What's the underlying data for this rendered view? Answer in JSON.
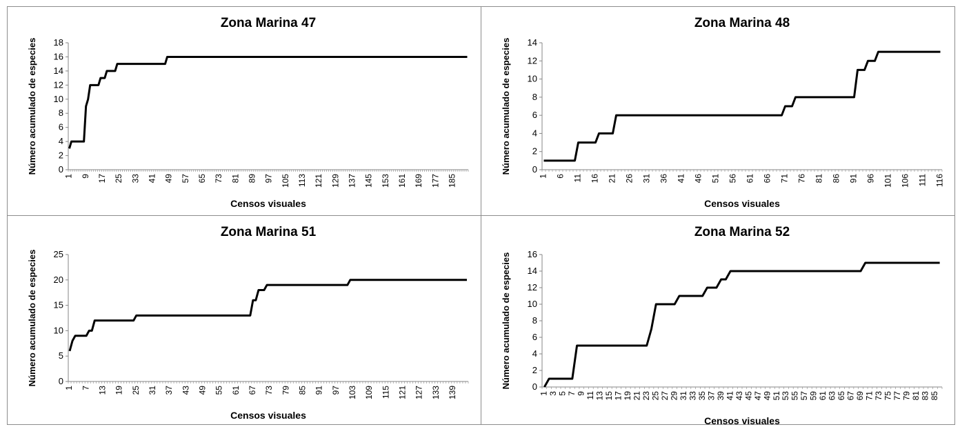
{
  "chart_data": [
    {
      "type": "line",
      "title": "Zona Marina 47",
      "xlabel": "Censos visuales",
      "ylabel": "Número acumulado de especies",
      "ylim": [
        0,
        18
      ],
      "ytick_step": 2,
      "n": 192,
      "xtick_start": 1,
      "xtick_step": 8,
      "series": [
        {
          "points": [
            [
              1,
              3
            ],
            [
              2,
              4
            ],
            [
              8,
              4
            ],
            [
              9,
              9
            ],
            [
              10,
              10
            ],
            [
              11,
              12
            ],
            [
              15,
              12
            ],
            [
              16,
              13
            ],
            [
              18,
              13
            ],
            [
              19,
              14
            ],
            [
              23,
              14
            ],
            [
              24,
              15
            ],
            [
              47,
              15
            ],
            [
              48,
              16
            ],
            [
              192,
              16
            ]
          ]
        }
      ]
    },
    {
      "type": "line",
      "title": "Zona Marina 48",
      "xlabel": "Censos visuales",
      "ylabel": "Número acumulado de especies",
      "ylim": [
        0,
        14
      ],
      "ytick_step": 2,
      "n": 116,
      "xtick_start": 1,
      "xtick_step": 5,
      "series": [
        {
          "points": [
            [
              1,
              1
            ],
            [
              10,
              1
            ],
            [
              11,
              3
            ],
            [
              16,
              3
            ],
            [
              17,
              4
            ],
            [
              21,
              4
            ],
            [
              22,
              6
            ],
            [
              70,
              6
            ],
            [
              71,
              7
            ],
            [
              73,
              7
            ],
            [
              74,
              8
            ],
            [
              91,
              8
            ],
            [
              92,
              11
            ],
            [
              94,
              11
            ],
            [
              95,
              12
            ],
            [
              97,
              12
            ],
            [
              98,
              13
            ],
            [
              116,
              13
            ]
          ]
        }
      ]
    },
    {
      "type": "line",
      "title": "Zona Marina 51",
      "xlabel": "Censos visuales",
      "ylabel": "Número acumulado de especies",
      "ylim": [
        0,
        25
      ],
      "ytick_step": 5,
      "n": 144,
      "xtick_start": 1,
      "xtick_step": 6,
      "series": [
        {
          "points": [
            [
              1,
              6
            ],
            [
              2,
              8
            ],
            [
              3,
              9
            ],
            [
              7,
              9
            ],
            [
              8,
              10
            ],
            [
              9,
              10
            ],
            [
              10,
              12
            ],
            [
              24,
              12
            ],
            [
              25,
              13
            ],
            [
              66,
              13
            ],
            [
              67,
              16
            ],
            [
              68,
              16
            ],
            [
              69,
              18
            ],
            [
              71,
              18
            ],
            [
              72,
              19
            ],
            [
              101,
              19
            ],
            [
              102,
              20
            ],
            [
              144,
              20
            ]
          ]
        }
      ]
    },
    {
      "type": "line",
      "title": "Zona Marina 52",
      "xlabel": "Censos visuales",
      "ylabel": "Número acumulado de especies",
      "ylim": [
        0,
        16
      ],
      "ytick_step": 2,
      "n": 86,
      "xtick_start": 1,
      "xtick_step": 2,
      "series": [
        {
          "points": [
            [
              1,
              0
            ],
            [
              2,
              1
            ],
            [
              7,
              1
            ],
            [
              8,
              5
            ],
            [
              23,
              5
            ],
            [
              24,
              7
            ],
            [
              25,
              10
            ],
            [
              29,
              10
            ],
            [
              30,
              11
            ],
            [
              35,
              11
            ],
            [
              36,
              12
            ],
            [
              38,
              12
            ],
            [
              39,
              13
            ],
            [
              40,
              13
            ],
            [
              41,
              14
            ],
            [
              69,
              14
            ],
            [
              70,
              15
            ],
            [
              86,
              15
            ]
          ]
        }
      ]
    }
  ]
}
